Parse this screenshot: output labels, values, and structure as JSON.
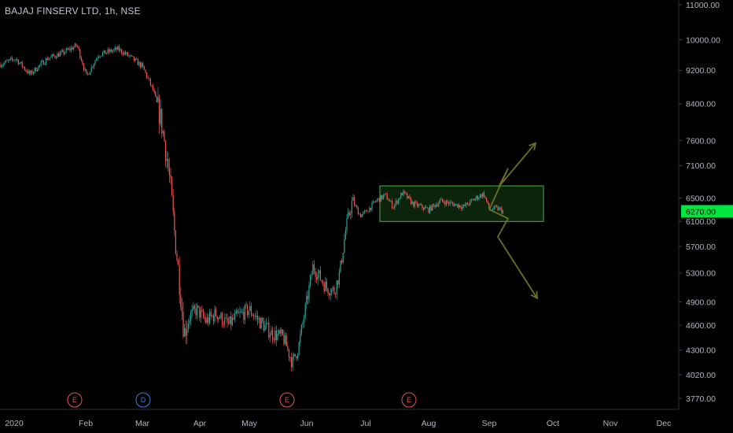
{
  "header": {
    "symbol": "BAJAJ FINSERV LTD, 1h, NSE"
  },
  "colors": {
    "background": "#000000",
    "up": "#26a69a",
    "down": "#ef5350",
    "box": "#4caf50",
    "box_fill": "#0e2a0e",
    "arrow": "#6b6f1e",
    "price_tag": "#00e640",
    "axis_text": "#b2b5be",
    "earnings_marker": "#e0574f",
    "dividend_marker": "#3d7be0"
  },
  "chart_data": {
    "type": "candlestick",
    "x_axis": [
      "2020",
      "Feb",
      "Mar",
      "Apr",
      "May",
      "Jun",
      "Jul",
      "Aug",
      "Sep",
      "Oct",
      "Nov",
      "Dec"
    ],
    "y_axis": [
      "11000.00",
      "10000.00",
      "9200.00",
      "8400.00",
      "7600.00",
      "7100.00",
      "6500.00",
      "6100.00",
      "5700.00",
      "5300.00",
      "4900.00",
      "4600.00",
      "4300.00",
      "4020.00",
      "3770.00"
    ],
    "y_scale": "log",
    "last_price": "6270.00",
    "price_path": [
      [
        "2020",
        9350
      ],
      [
        "Feb",
        9600
      ],
      [
        "Mar",
        9300
      ],
      [
        "Apr",
        4700
      ],
      [
        "May",
        4600
      ],
      [
        "Jun",
        5000
      ],
      [
        "Jul",
        6450
      ],
      [
        "Aug",
        6350
      ],
      [
        "Sep",
        6270
      ]
    ],
    "range_box": {
      "low": 6100,
      "high": 6720,
      "from": "Jul",
      "to": "Sep"
    },
    "projections": [
      {
        "direction": "up",
        "target": 7550
      },
      {
        "direction": "down",
        "target": 4950
      }
    ],
    "event_markers": [
      {
        "label": "E",
        "type": "earnings",
        "near": "Feb"
      },
      {
        "label": "D",
        "type": "dividend",
        "near": "Mar"
      },
      {
        "label": "E",
        "type": "earnings",
        "near": "Jun"
      },
      {
        "label": "E",
        "type": "earnings",
        "near": "Aug"
      }
    ]
  }
}
